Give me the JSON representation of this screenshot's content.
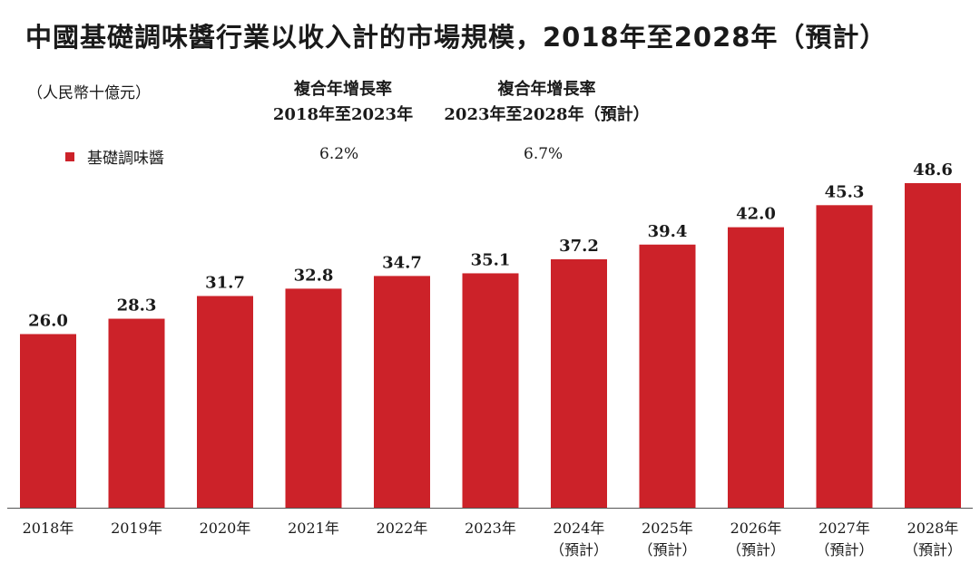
{
  "title": "中國基礎調味醬行業以收入計的市場規模，2018年至2028年（預計）",
  "unit_label": "（人民幣十億元）",
  "cagr": [
    {
      "header_line1": "複合年增長率",
      "header_line2": "2018年至2023年",
      "value": "6.2%"
    },
    {
      "header_line1": "複合年增長率",
      "header_line2": "2023年至2028年（預計）",
      "value": "6.7%"
    }
  ],
  "legend": {
    "label": "基礎調味醬",
    "color": "#cc2229"
  },
  "chart_data": {
    "type": "bar",
    "categories": [
      "2018年",
      "2019年",
      "2020年",
      "2021年",
      "2022年",
      "2023年",
      "2024年",
      "2025年",
      "2026年",
      "2027年",
      "2028年"
    ],
    "category_sublabels": [
      "",
      "",
      "",
      "",
      "",
      "",
      "（預計）",
      "（預計）",
      "（預計）",
      "（預計）",
      "（預計）"
    ],
    "series": [
      {
        "name": "基礎調味醬",
        "values": [
          26.0,
          28.3,
          31.7,
          32.8,
          34.7,
          35.1,
          37.2,
          39.4,
          42.0,
          45.3,
          48.6
        ],
        "color": "#cc2229"
      }
    ],
    "value_labels": [
      "26.0",
      "28.3",
      "31.7",
      "32.8",
      "34.7",
      "35.1",
      "37.2",
      "39.4",
      "42.0",
      "45.3",
      "48.6"
    ],
    "ylim": [
      0,
      48.6
    ],
    "grid": false,
    "legend_position": "top-left"
  }
}
